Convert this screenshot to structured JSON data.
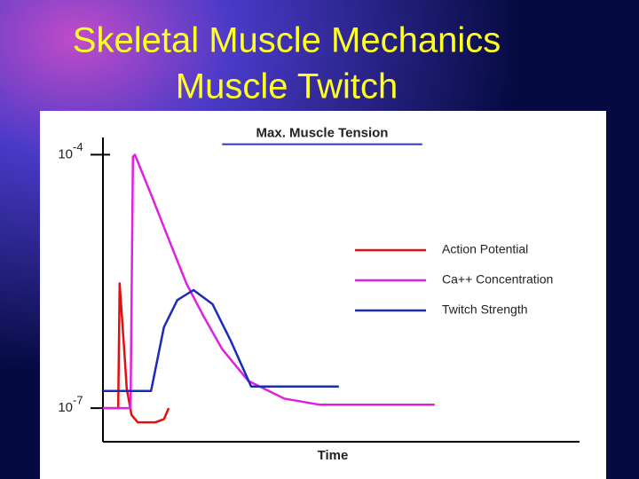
{
  "chart_data": {
    "type": "line",
    "title": "Skeletal Muscle Mechanics",
    "subtitle": "Muscle Twitch",
    "x_label": "Time",
    "log_y": true,
    "xlim": [
      0,
      100
    ],
    "ylim": [
      4e-08,
      0.00016
    ],
    "yticks": [
      {
        "value": 0.0001,
        "label": "10",
        "exponent": "-4"
      },
      {
        "value": 1e-07,
        "label": "10",
        "exponent": "-7"
      }
    ],
    "reference_line": {
      "label": "Max. Muscle Tension",
      "value": 0.000133,
      "x": [
        25,
        67
      ],
      "color": "#2b3aa8"
    },
    "series": [
      {
        "name": "Action Potential",
        "color": "#e01010",
        "x": [
          0,
          3.2,
          3.5,
          4.5,
          5,
          6,
          7.3,
          11,
          12.8,
          13.8
        ],
        "values": [
          1e-07,
          1e-07,
          3e-06,
          4.5e-07,
          1.7e-07,
          8.3e-08,
          6.8e-08,
          6.8e-08,
          7.4e-08,
          1e-07
        ]
      },
      {
        "name": "Ca++ Concentration",
        "color": "#e020e0",
        "x": [
          0,
          5.8,
          6.3,
          6.7,
          10.1,
          13.8,
          17.5,
          21.2,
          25,
          30.5,
          38,
          45.4,
          69.6
        ],
        "values": [
          1e-07,
          1e-07,
          9.5e-05,
          0.0001,
          3.4e-05,
          1e-05,
          3e-06,
          1.2e-06,
          5e-07,
          2.1e-07,
          1.3e-07,
          1.1e-07,
          1.1e-07
        ]
      },
      {
        "name": "Twitch Strength",
        "color": "#1a2aba",
        "x": [
          0,
          10.1,
          12.8,
          15.6,
          19,
          23,
          26.8,
          31.1,
          49.5
        ],
        "values": [
          1.6e-07,
          1.6e-07,
          9.1e-07,
          1.9e-06,
          2.5e-06,
          1.7e-06,
          6.3e-07,
          1.8e-07,
          1.8e-07
        ]
      }
    ]
  }
}
